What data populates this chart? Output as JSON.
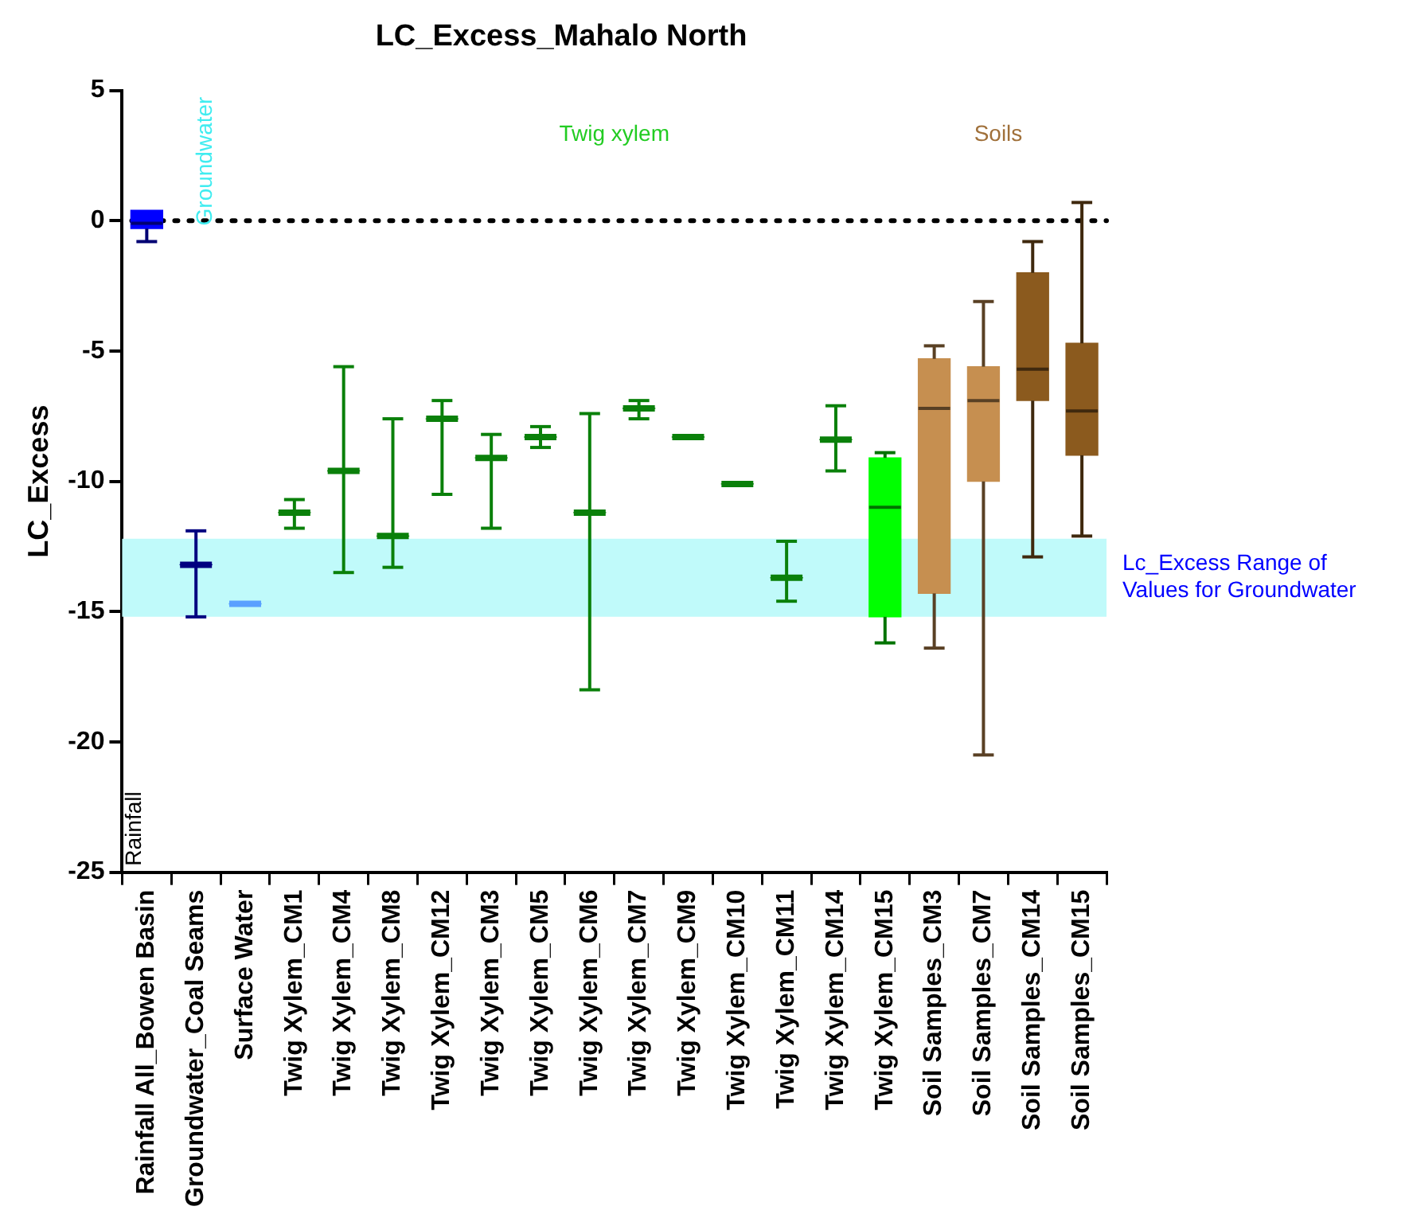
{
  "chart_data": {
    "type": "box",
    "title": "LC_Excess_Mahalo North",
    "ylabel": "LC_Excess",
    "categories": [
      "Rainfall All_Bowen Basin",
      "Groundwater_Coal Seams",
      "Surface Water",
      "Twig Xylem_CM1",
      "Twig Xylem_CM4",
      "Twig Xylem_CM8",
      "Twig Xylem_CM12",
      "Twig Xylem_CM3",
      "Twig Xylem_CM5",
      "Twig Xylem_CM6",
      "Twig Xylem_CM7",
      "Twig Xylem_CM9",
      "Twig Xylem_CM10",
      "Twig Xylem_CM11",
      "Twig Xylem_CM14",
      "Twig Xylem_CM15",
      "Soil Samples_CM3",
      "Soil Samples_CM7",
      "Soil Samples_CM14",
      "Soil Samples_CM15"
    ],
    "boxes": [
      {
        "low": -0.8,
        "q1": -0.3,
        "median": -0.1,
        "q3": 0.4,
        "high": 0.4
      },
      {
        "low": -15.2,
        "q1": -13.2,
        "median": -13.2,
        "q3": -13.2,
        "high": -11.9
      },
      {
        "low": -14.7,
        "q1": -14.7,
        "median": -14.7,
        "q3": -14.7,
        "high": -14.7
      },
      {
        "low": -11.8,
        "q1": -11.2,
        "median": -11.2,
        "q3": -11.2,
        "high": -10.7
      },
      {
        "low": -13.5,
        "q1": -9.6,
        "median": -9.6,
        "q3": -9.6,
        "high": -5.6
      },
      {
        "low": -13.3,
        "q1": -12.1,
        "median": -12.1,
        "q3": -12.1,
        "high": -7.6
      },
      {
        "low": -10.5,
        "q1": -7.6,
        "median": -7.6,
        "q3": -7.6,
        "high": -6.9
      },
      {
        "low": -11.8,
        "q1": -9.1,
        "median": -9.1,
        "q3": -9.1,
        "high": -8.2
      },
      {
        "low": -8.7,
        "q1": -8.3,
        "median": -8.3,
        "q3": -8.3,
        "high": -7.9
      },
      {
        "low": -18.0,
        "q1": -11.2,
        "median": -11.2,
        "q3": -11.2,
        "high": -7.4
      },
      {
        "low": -7.6,
        "q1": -7.2,
        "median": -7.2,
        "q3": -7.2,
        "high": -6.9
      },
      {
        "low": -8.3,
        "q1": -8.3,
        "median": -8.3,
        "q3": -8.3,
        "high": -8.3
      },
      {
        "low": -10.1,
        "q1": -10.1,
        "median": -10.1,
        "q3": -10.1,
        "high": -10.1
      },
      {
        "low": -14.6,
        "q1": -13.7,
        "median": -13.7,
        "q3": -13.7,
        "high": -12.3
      },
      {
        "low": -9.6,
        "q1": -8.4,
        "median": -8.4,
        "q3": -8.4,
        "high": -7.1
      },
      {
        "low": -16.2,
        "q1": -15.2,
        "median": -11.0,
        "q3": -9.1,
        "high": -8.9
      },
      {
        "low": -16.4,
        "q1": -14.3,
        "median": -7.2,
        "q3": -5.3,
        "high": -4.8
      },
      {
        "low": -20.5,
        "q1": -10.0,
        "median": -6.9,
        "q3": -5.6,
        "high": -3.1
      },
      {
        "low": -12.9,
        "q1": -6.9,
        "median": -5.7,
        "q3": -2.0,
        "high": -0.8
      },
      {
        "low": -12.1,
        "q1": -9.0,
        "median": -7.3,
        "q3": -4.7,
        "high": 0.7
      }
    ],
    "colors": [
      "#0000ff",
      "#000080",
      "#5aa0ff",
      "#0a800a",
      "#0a800a",
      "#0a800a",
      "#0a800a",
      "#0a800a",
      "#0a800a",
      "#0a800a",
      "#0a800a",
      "#0a800a",
      "#0a800a",
      "#0a800a",
      "#0a800a",
      "#00ff00",
      "#c68f50",
      "#c68f50",
      "#8b5a1e",
      "#8b5a1e"
    ],
    "ylim": [
      -25,
      5
    ],
    "yticks": [
      -25,
      -20,
      -15,
      -10,
      -5,
      0,
      5
    ],
    "grid": false,
    "legend": false,
    "ref_lines": [
      {
        "axis": "y",
        "value": 0,
        "color": "#000000",
        "line_style": "dotted"
      }
    ],
    "bands": [
      {
        "axis": "y",
        "from": -15.2,
        "to": -12.2,
        "label": "Lc_Excess Range of Values for Groundwater",
        "color": "#c0fafa"
      }
    ],
    "annotations": [
      "Groundwater",
      "Twig xylem",
      "Soils",
      "Rainfall"
    ]
  }
}
